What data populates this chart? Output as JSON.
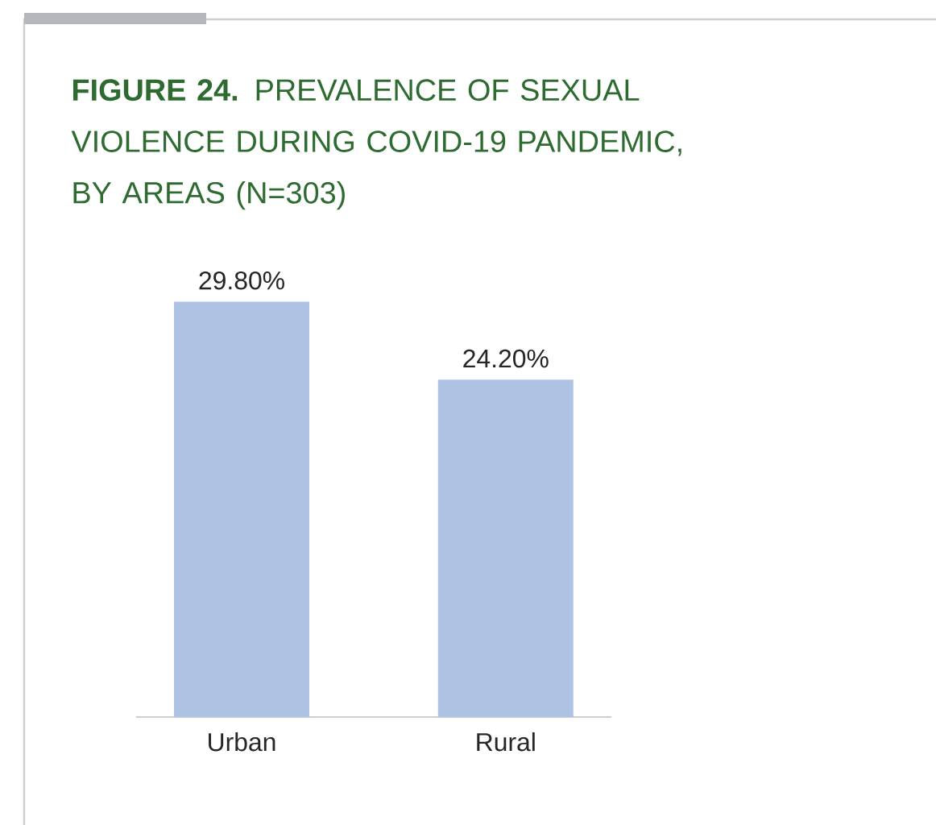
{
  "chart_data": {
    "type": "bar",
    "title": "**FIGURE 24.** PREVALENCE OF SEXUAL VIOLENCE DURING COVID-19 PANDEMIC, BY AREAS (N=303)",
    "categories": [
      "Urban",
      "Rural"
    ],
    "values": [
      29.8,
      24.2
    ],
    "value_labels": [
      "29.80%",
      "24.20%"
    ],
    "color": "#aec3e3"
  }
}
